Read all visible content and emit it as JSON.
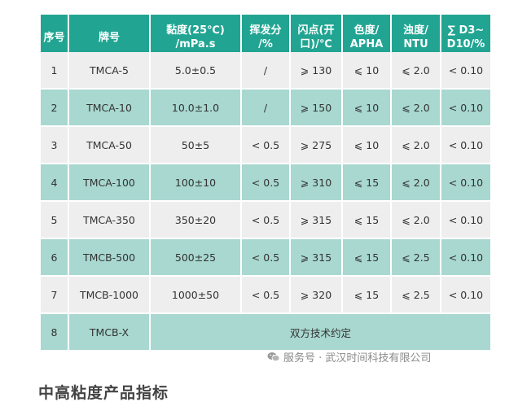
{
  "table": {
    "headers": [
      "序号",
      "牌号",
      "黏度(25℃)\n/mPa.s",
      "挥发分\n/%",
      "闪点(开\n口)/℃",
      "色度/\nAPHA",
      "浊度/\nNTU",
      "∑ D3~\nD10/%"
    ],
    "rows": [
      [
        "1",
        "TMCA-5",
        "5.0±0.5",
        "/",
        "⩾ 130",
        "⩽ 10",
        "⩽ 2.0",
        "< 0.10"
      ],
      [
        "2",
        "TMCA-10",
        "10.0±1.0",
        "/",
        "⩾ 150",
        "⩽ 10",
        "⩽ 2.0",
        "< 0.10"
      ],
      [
        "3",
        "TMCA-50",
        "50±5",
        "< 0.5",
        "⩾ 275",
        "⩽ 10",
        "⩽ 2.0",
        "< 0.10"
      ],
      [
        "4",
        "TMCA-100",
        "100±10",
        "< 0.5",
        "⩾ 310",
        "⩽ 15",
        "⩽ 2.0",
        "< 0.10"
      ],
      [
        "5",
        "TMCA-350",
        "350±20",
        "< 0.5",
        "⩾ 315",
        "⩽ 15",
        "⩽ 2.0",
        "< 0.10"
      ],
      [
        "6",
        "TMCB-500",
        "500±25",
        "< 0.5",
        "⩾ 315",
        "⩽ 15",
        "⩽ 2.5",
        "< 0.10"
      ],
      [
        "7",
        "TMCB-1000",
        "1000±50",
        "< 0.5",
        "⩾ 320",
        "⩽ 15",
        "⩽ 2.5",
        "< 0.10"
      ]
    ],
    "last_row": {
      "index": "8",
      "grade": "TMCB-X",
      "note": "双方技术约定"
    }
  },
  "watermark": {
    "icon": "wechat-icon",
    "text": "服务号 · 武汉时间科技有限公司"
  },
  "footer": {
    "title": "中高粘度产品指标"
  },
  "colors": {
    "header": "#21a592",
    "row_light": "#eeeeee",
    "row_teal": "#a8d8d0"
  }
}
